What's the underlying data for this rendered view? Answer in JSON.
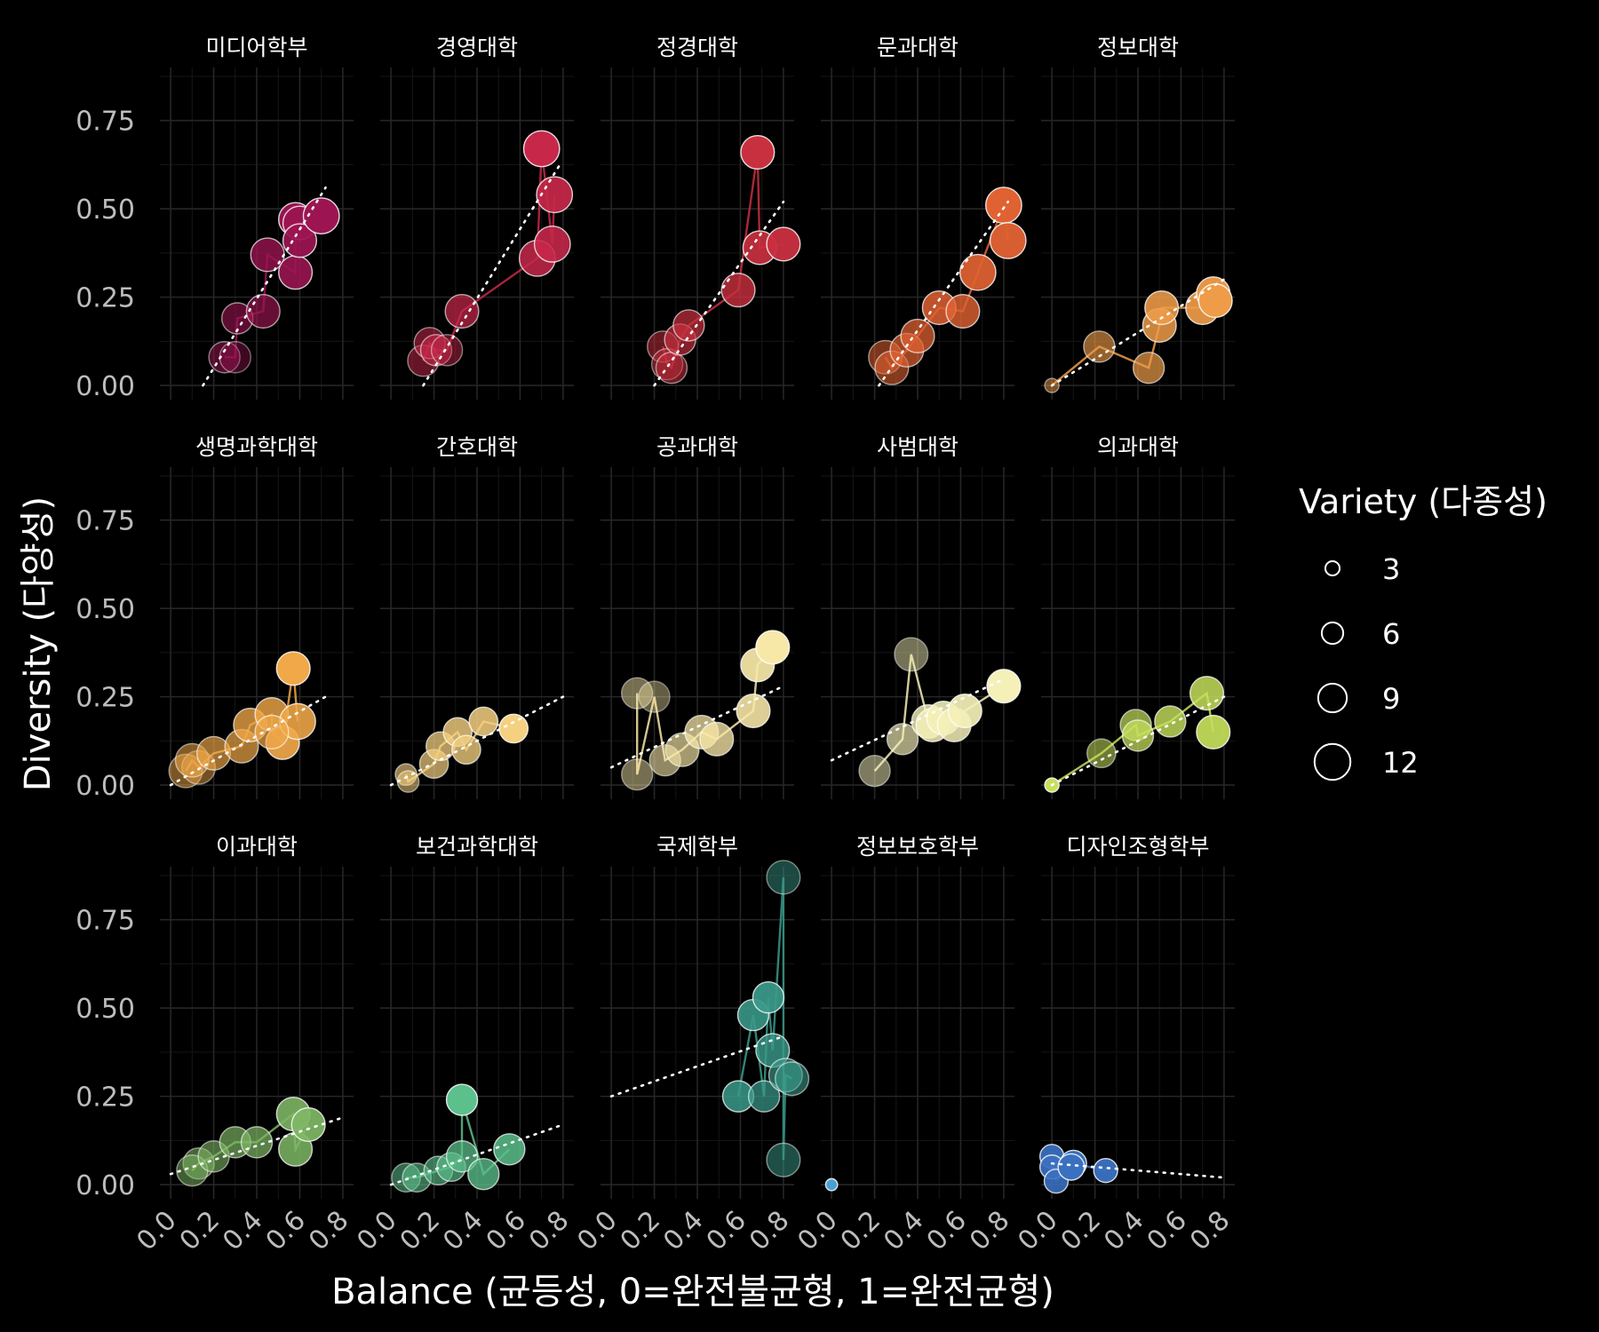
{
  "chart_data": {
    "type": "scatter",
    "facet_layout": "5 columns x 3 rows",
    "xlabel": "Balance (균등성, 0=완전불균형, 1=완전균형)",
    "ylabel": "Diversity (다양성)",
    "xlim": [
      -0.05,
      0.85
    ],
    "ylim": [
      -0.04,
      0.9
    ],
    "x_ticks": [
      "0.0",
      "0.2",
      "0.4",
      "0.6",
      "0.8"
    ],
    "y_ticks": [
      "0.00",
      "0.25",
      "0.50",
      "0.75"
    ],
    "grid": true,
    "legend": {
      "title": "Variety (다종성)",
      "position": "right",
      "entries": [
        {
          "label": "3",
          "value": 3
        },
        {
          "label": "6",
          "value": 6
        },
        {
          "label": "9",
          "value": 9
        },
        {
          "label": "12",
          "value": 12
        }
      ]
    },
    "facets": [
      {
        "name": "미디어학부",
        "color": "#9c1552",
        "trend": [
          [
            0.15,
            0.0
          ],
          [
            0.72,
            0.56
          ]
        ],
        "points": [
          [
            0.25,
            0.08,
            10,
            0.35
          ],
          [
            0.3,
            0.08,
            10,
            0.2
          ],
          [
            0.31,
            0.19,
            10,
            0.45
          ],
          [
            0.43,
            0.21,
            11,
            0.55
          ],
          [
            0.45,
            0.37,
            11,
            0.7
          ],
          [
            0.58,
            0.32,
            11,
            0.85
          ],
          [
            0.58,
            0.47,
            11,
            0.95
          ],
          [
            0.6,
            0.46,
            11,
            0.9
          ],
          [
            0.6,
            0.41,
            11,
            0.9
          ],
          [
            0.7,
            0.48,
            12,
            1.0
          ]
        ]
      },
      {
        "name": "경영대학",
        "color": "#c7284a",
        "trend": [
          [
            0.15,
            0.0
          ],
          [
            0.78,
            0.62
          ]
        ],
        "points": [
          [
            0.15,
            0.07,
            10,
            0.35
          ],
          [
            0.18,
            0.12,
            10,
            0.4
          ],
          [
            0.21,
            0.1,
            10,
            0.45
          ],
          [
            0.26,
            0.1,
            10,
            0.3
          ],
          [
            0.33,
            0.21,
            11,
            0.6
          ],
          [
            0.68,
            0.36,
            12,
            0.8
          ],
          [
            0.7,
            0.67,
            12,
            1.0
          ],
          [
            0.76,
            0.54,
            12,
            0.9
          ],
          [
            0.75,
            0.4,
            12,
            0.85
          ]
        ]
      },
      {
        "name": "정경대학",
        "color": "#c8303f",
        "trend": [
          [
            0.2,
            0.0
          ],
          [
            0.8,
            0.52
          ]
        ],
        "points": [
          [
            0.24,
            0.11,
            10,
            0.35
          ],
          [
            0.26,
            0.06,
            10,
            0.3
          ],
          [
            0.28,
            0.05,
            10,
            0.4
          ],
          [
            0.32,
            0.13,
            10,
            0.55
          ],
          [
            0.36,
            0.17,
            10,
            0.6
          ],
          [
            0.59,
            0.27,
            11,
            0.75
          ],
          [
            0.68,
            0.66,
            11,
            1.0
          ],
          [
            0.69,
            0.39,
            11,
            0.9
          ],
          [
            0.8,
            0.4,
            11,
            0.95
          ]
        ]
      },
      {
        "name": "문과대학",
        "color": "#e06232",
        "trend": [
          [
            0.22,
            0.0
          ],
          [
            0.82,
            0.52
          ]
        ],
        "points": [
          [
            0.25,
            0.08,
            11,
            0.4
          ],
          [
            0.28,
            0.05,
            11,
            0.45
          ],
          [
            0.35,
            0.1,
            11,
            0.6
          ],
          [
            0.4,
            0.14,
            11,
            0.65
          ],
          [
            0.5,
            0.22,
            11,
            0.8
          ],
          [
            0.61,
            0.21,
            11,
            0.75
          ],
          [
            0.68,
            0.32,
            12,
            0.9
          ],
          [
            0.8,
            0.51,
            12,
            1.0
          ],
          [
            0.82,
            0.41,
            12,
            0.95
          ]
        ]
      },
      {
        "name": "정보대학",
        "color": "#ee9c48",
        "trend": [
          [
            0.0,
            0.0
          ],
          [
            0.8,
            0.3
          ]
        ],
        "points": [
          [
            0.0,
            0.0,
            3,
            0.35
          ],
          [
            0.22,
            0.11,
            10,
            0.5
          ],
          [
            0.45,
            0.05,
            10,
            0.6
          ],
          [
            0.5,
            0.17,
            11,
            0.8
          ],
          [
            0.51,
            0.22,
            11,
            0.85
          ],
          [
            0.7,
            0.22,
            11,
            0.9
          ],
          [
            0.75,
            0.26,
            11,
            0.95
          ],
          [
            0.76,
            0.24,
            11,
            1.0
          ]
        ]
      },
      {
        "name": "생명과학대학",
        "color": "#f0a848",
        "trend": [
          [
            0.0,
            0.0
          ],
          [
            0.72,
            0.25
          ]
        ],
        "points": [
          [
            0.07,
            0.04,
            11,
            0.35
          ],
          [
            0.13,
            0.05,
            11,
            0.3
          ],
          [
            0.1,
            0.07,
            11,
            0.4
          ],
          [
            0.2,
            0.09,
            11,
            0.55
          ],
          [
            0.33,
            0.11,
            11,
            0.6
          ],
          [
            0.37,
            0.17,
            11,
            0.7
          ],
          [
            0.47,
            0.2,
            11,
            0.75
          ],
          [
            0.52,
            0.12,
            11,
            0.9
          ],
          [
            0.57,
            0.33,
            11,
            1.0
          ],
          [
            0.59,
            0.18,
            12,
            0.85
          ],
          [
            0.47,
            0.15,
            11,
            0.6
          ]
        ]
      },
      {
        "name": "간호대학",
        "color": "#f4d080",
        "trend": [
          [
            0.0,
            0.0
          ],
          [
            0.8,
            0.25
          ]
        ],
        "points": [
          [
            0.07,
            0.03,
            6,
            0.5
          ],
          [
            0.08,
            0.01,
            6,
            0.4
          ],
          [
            0.2,
            0.06,
            9,
            0.6
          ],
          [
            0.23,
            0.11,
            9,
            0.65
          ],
          [
            0.31,
            0.15,
            9,
            0.75
          ],
          [
            0.35,
            0.1,
            9,
            0.7
          ],
          [
            0.43,
            0.18,
            9,
            0.8
          ],
          [
            0.57,
            0.16,
            9,
            1.0
          ]
        ]
      },
      {
        "name": "공과대학",
        "color": "#f8e8a8",
        "trend": [
          [
            0.0,
            0.05
          ],
          [
            0.8,
            0.28
          ]
        ],
        "points": [
          [
            0.12,
            0.26,
            10,
            0.3
          ],
          [
            0.12,
            0.03,
            10,
            0.3
          ],
          [
            0.2,
            0.25,
            10,
            0.2
          ],
          [
            0.25,
            0.07,
            10,
            0.45
          ],
          [
            0.33,
            0.1,
            11,
            0.55
          ],
          [
            0.42,
            0.15,
            11,
            0.65
          ],
          [
            0.49,
            0.13,
            11,
            0.7
          ],
          [
            0.68,
            0.34,
            11,
            0.9
          ],
          [
            0.66,
            0.21,
            11,
            0.85
          ],
          [
            0.75,
            0.39,
            11,
            1.0
          ]
        ]
      },
      {
        "name": "사범대학",
        "color": "#f4f0b8",
        "trend": [
          [
            0.0,
            0.07
          ],
          [
            0.8,
            0.3
          ]
        ],
        "points": [
          [
            0.2,
            0.04,
            10,
            0.35
          ],
          [
            0.33,
            0.13,
            10,
            0.55
          ],
          [
            0.37,
            0.37,
            11,
            0.3
          ],
          [
            0.45,
            0.18,
            11,
            0.75
          ],
          [
            0.47,
            0.17,
            11,
            0.8
          ],
          [
            0.52,
            0.19,
            11,
            0.85
          ],
          [
            0.57,
            0.17,
            11,
            0.8
          ],
          [
            0.62,
            0.21,
            11,
            0.9
          ],
          [
            0.8,
            0.28,
            11,
            1.0
          ]
        ]
      },
      {
        "name": "의과대학",
        "color": "#c6e05c",
        "trend": [
          [
            0.0,
            0.0
          ],
          [
            0.8,
            0.25
          ]
        ],
        "points": [
          [
            0.0,
            0.0,
            3,
            1.0
          ],
          [
            0.23,
            0.09,
            9,
            0.4
          ],
          [
            0.39,
            0.17,
            10,
            0.6
          ],
          [
            0.4,
            0.14,
            10,
            0.65
          ],
          [
            0.55,
            0.18,
            10,
            0.75
          ],
          [
            0.72,
            0.26,
            11,
            0.8
          ],
          [
            0.75,
            0.15,
            11,
            0.9
          ]
        ]
      },
      {
        "name": "이과대학",
        "color": "#7fb865",
        "trend": [
          [
            0.0,
            0.03
          ],
          [
            0.8,
            0.19
          ]
        ],
        "points": [
          [
            0.13,
            0.06,
            10,
            0.4
          ],
          [
            0.1,
            0.04,
            10,
            0.35
          ],
          [
            0.2,
            0.08,
            10,
            0.45
          ],
          [
            0.3,
            0.12,
            10,
            0.55
          ],
          [
            0.4,
            0.12,
            10,
            0.6
          ],
          [
            0.57,
            0.2,
            11,
            0.85
          ],
          [
            0.58,
            0.1,
            11,
            0.8
          ],
          [
            0.64,
            0.17,
            11,
            0.9
          ]
        ]
      },
      {
        "name": "보건과학대학",
        "color": "#5cc08c",
        "trend": [
          [
            0.0,
            0.0
          ],
          [
            0.8,
            0.17
          ]
        ],
        "points": [
          [
            0.07,
            0.02,
            9,
            0.4
          ],
          [
            0.12,
            0.02,
            9,
            0.45
          ],
          [
            0.22,
            0.04,
            9,
            0.5
          ],
          [
            0.28,
            0.05,
            9,
            0.55
          ],
          [
            0.33,
            0.08,
            10,
            0.65
          ],
          [
            0.33,
            0.24,
            10,
            1.0
          ],
          [
            0.43,
            0.03,
            10,
            0.7
          ],
          [
            0.55,
            0.1,
            10,
            0.8
          ]
        ]
      },
      {
        "name": "국제학부",
        "color": "#3a9a8a",
        "trend": [
          [
            0.0,
            0.25
          ],
          [
            0.8,
            0.42
          ]
        ],
        "points": [
          [
            0.59,
            0.25,
            10,
            0.8
          ],
          [
            0.66,
            0.48,
            10,
            0.85
          ],
          [
            0.73,
            0.53,
            10,
            0.9
          ],
          [
            0.75,
            0.38,
            11,
            0.75
          ],
          [
            0.71,
            0.25,
            10,
            0.6
          ],
          [
            0.8,
            0.87,
            11,
            0.3
          ],
          [
            0.8,
            0.07,
            11,
            0.35
          ],
          [
            0.81,
            0.31,
            11,
            0.55
          ],
          [
            0.84,
            0.3,
            11,
            0.45
          ]
        ]
      },
      {
        "name": "정보보호학부",
        "color": "#4aa0d4",
        "trend": null,
        "points": [
          [
            0.0,
            0.0,
            2,
            1.0
          ]
        ]
      },
      {
        "name": "디자인조형학부",
        "color": "#3a70c0",
        "trend": [
          [
            0.0,
            0.06
          ],
          [
            0.8,
            0.02
          ]
        ],
        "points": [
          [
            0.0,
            0.08,
            7,
            0.9
          ],
          [
            0.0,
            0.05,
            7,
            0.9
          ],
          [
            0.02,
            0.01,
            7,
            0.85
          ],
          [
            0.1,
            0.06,
            8,
            0.95
          ],
          [
            0.09,
            0.05,
            8,
            1.0
          ],
          [
            0.25,
            0.04,
            7,
            0.95
          ]
        ]
      }
    ]
  }
}
